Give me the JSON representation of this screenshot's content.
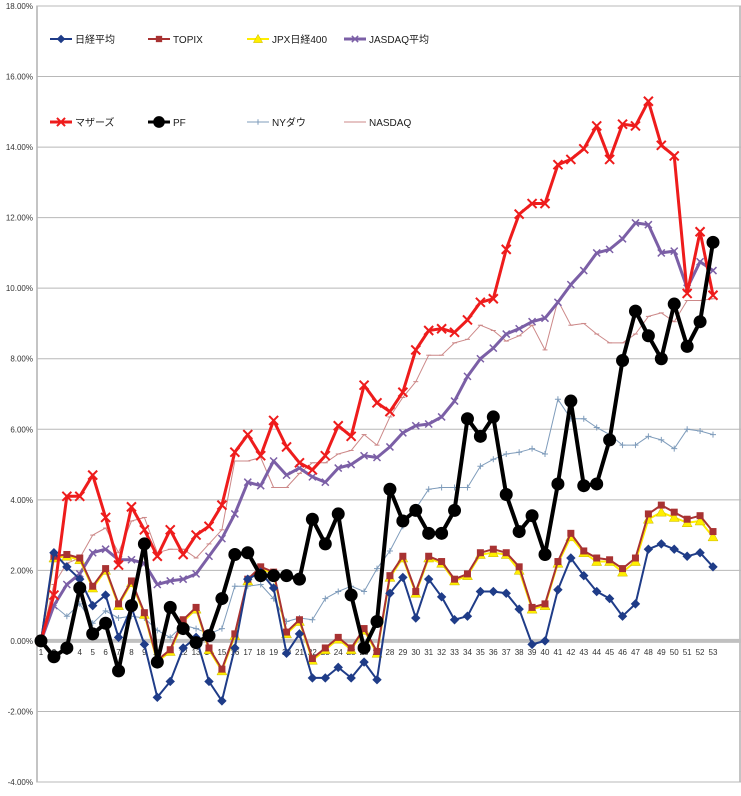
{
  "chart_data": {
    "type": "line",
    "title": "",
    "xlabel": "",
    "ylabel": "",
    "ylim": [
      -4.0,
      18.0
    ],
    "yticks": [
      "-4.00%",
      "-2.00%",
      "0.00%",
      "2.00%",
      "4.00%",
      "6.00%",
      "8.00%",
      "10.00%",
      "12.00%",
      "14.00%",
      "16.00%",
      "18.00%"
    ],
    "x": [
      1,
      2,
      3,
      4,
      5,
      6,
      7,
      8,
      9,
      10,
      11,
      12,
      13,
      14,
      15,
      16,
      17,
      18,
      19,
      20,
      21,
      22,
      23,
      24,
      25,
      26,
      27,
      28,
      29,
      30,
      31,
      32,
      33,
      34,
      35,
      36,
      37,
      38,
      39,
      40,
      41,
      42,
      43,
      44,
      45,
      46,
      47,
      48,
      49,
      50,
      51,
      52,
      53
    ],
    "grid": true,
    "legend_position": "top-left",
    "series": [
      {
        "name": "日経平均",
        "color": "#1f3c88",
        "marker": "diamond",
        "width": 2,
        "values": [
          0,
          2.5,
          2.1,
          1.75,
          1.0,
          1.3,
          0.1,
          0.95,
          -0.1,
          -1.6,
          -1.15,
          -0.2,
          0.1,
          -1.15,
          -1.7,
          -0.2,
          1.75,
          1.95,
          1.5,
          -0.35,
          0.2,
          -1.05,
          -1.05,
          -0.75,
          -1.05,
          -0.6,
          -1.1,
          1.35,
          1.8,
          0.65,
          1.75,
          1.25,
          0.6,
          0.7,
          1.4,
          1.4,
          1.35,
          0.9,
          -0.1,
          0,
          1.45,
          2.35,
          1.85,
          1.4,
          1.2,
          0.7,
          1.05,
          2.6,
          2.75,
          2.6,
          2.4,
          2.5,
          2.1
        ]
      },
      {
        "name": "TOPIX",
        "color": "#a83232",
        "marker": "square",
        "width": 2,
        "values": [
          0,
          2.4,
          2.45,
          2.35,
          1.55,
          2.05,
          1.05,
          1.7,
          0.8,
          -0.55,
          -0.25,
          0.6,
          0.95,
          -0.2,
          -0.8,
          0.2,
          1.75,
          2.1,
          1.95,
          0.25,
          0.6,
          -0.5,
          -0.2,
          0.1,
          -0.2,
          0.35,
          -0.3,
          1.85,
          2.4,
          1.4,
          2.4,
          2.25,
          1.75,
          1.9,
          2.5,
          2.6,
          2.5,
          2.1,
          0.95,
          1.05,
          2.25,
          3.05,
          2.55,
          2.35,
          2.3,
          2.05,
          2.35,
          3.6,
          3.85,
          3.65,
          3.45,
          3.55,
          3.1
        ]
      },
      {
        "name": "JPX日経400",
        "color": "#ffee00",
        "marker": "triangle",
        "width": 2,
        "values": [
          0,
          2.35,
          2.4,
          2.3,
          1.5,
          2.0,
          1.0,
          1.65,
          0.75,
          -0.6,
          -0.3,
          0.55,
          0.9,
          -0.25,
          -0.85,
          0.15,
          1.7,
          2.05,
          1.9,
          0.2,
          0.55,
          -0.55,
          -0.25,
          0.05,
          -0.25,
          0.3,
          -0.35,
          1.8,
          2.35,
          1.35,
          2.35,
          2.2,
          1.7,
          1.85,
          2.45,
          2.5,
          2.45,
          2.0,
          0.9,
          1.0,
          2.2,
          2.95,
          2.5,
          2.25,
          2.25,
          1.95,
          2.25,
          3.45,
          3.65,
          3.5,
          3.35,
          3.4,
          2.95
        ]
      },
      {
        "name": "JASDAQ平均",
        "color": "#7b5fa6",
        "marker": "cross",
        "width": 3,
        "values": [
          0,
          1.0,
          1.6,
          1.9,
          2.5,
          2.6,
          2.3,
          2.3,
          2.2,
          1.6,
          1.7,
          1.75,
          1.9,
          2.4,
          2.9,
          3.6,
          4.5,
          4.4,
          5.1,
          4.7,
          4.9,
          4.65,
          4.5,
          4.9,
          5.0,
          5.25,
          5.2,
          5.5,
          5.9,
          6.1,
          6.15,
          6.35,
          6.8,
          7.5,
          8.0,
          8.3,
          8.7,
          8.85,
          9.05,
          9.15,
          9.6,
          10.1,
          10.5,
          11.0,
          11.1,
          11.4,
          11.85,
          11.8,
          11.0,
          11.05,
          10.0,
          10.75,
          10.5
        ]
      },
      {
        "name": "マザーズ",
        "color": "#ee1c1c",
        "marker": "x",
        "width": 3,
        "values": [
          0,
          1.3,
          4.1,
          4.1,
          4.7,
          3.5,
          2.15,
          3.8,
          3.15,
          2.4,
          3.15,
          2.45,
          3.0,
          3.25,
          3.85,
          5.35,
          5.85,
          5.25,
          6.25,
          5.5,
          5.05,
          4.85,
          5.25,
          6.1,
          5.8,
          7.25,
          6.75,
          6.5,
          7.05,
          8.25,
          8.8,
          8.85,
          8.75,
          9.1,
          9.6,
          9.7,
          11.1,
          12.1,
          12.4,
          12.4,
          13.5,
          13.65,
          13.95,
          14.6,
          13.65,
          14.65,
          14.6,
          15.3,
          14.05,
          13.75,
          9.85,
          11.6,
          9.8
        ]
      },
      {
        "name": "PF",
        "color": "#000000",
        "marker": "circle",
        "width": 4,
        "values": [
          0,
          -0.45,
          -0.2,
          1.5,
          0.2,
          0.5,
          -0.85,
          1.0,
          2.75,
          -0.6,
          0.95,
          0.35,
          -0.05,
          0.15,
          1.2,
          2.45,
          2.5,
          1.85,
          1.85,
          1.85,
          1.75,
          3.45,
          2.75,
          3.6,
          1.3,
          -0.2,
          0.55,
          4.3,
          3.4,
          3.7,
          3.05,
          3.05,
          3.7,
          6.3,
          5.8,
          6.35,
          4.15,
          3.1,
          3.55,
          2.45,
          4.45,
          6.8,
          4.4,
          4.45,
          5.7,
          7.95,
          9.35,
          8.65,
          8.0,
          9.55,
          8.35,
          9.05,
          11.3
        ]
      },
      {
        "name": "NYダウ",
        "color": "#7f9cbb",
        "marker": "plus",
        "width": 1,
        "values": [
          0,
          1.0,
          0.7,
          1.05,
          0.5,
          0.85,
          0.65,
          0.7,
          0.65,
          0.3,
          0.1,
          0.45,
          0.35,
          0.2,
          0.35,
          1.55,
          1.55,
          1.6,
          1.2,
          0.55,
          0.65,
          0.6,
          1.2,
          1.4,
          1.55,
          1.4,
          2.05,
          2.55,
          3.25,
          3.75,
          4.3,
          4.35,
          4.35,
          4.35,
          4.95,
          5.15,
          5.3,
          5.35,
          5.45,
          5.3,
          6.85,
          6.3,
          6.3,
          6.05,
          5.85,
          5.55,
          5.55,
          5.8,
          5.7,
          5.45,
          6.0,
          5.95,
          5.85
        ]
      },
      {
        "name": "NASDAQ",
        "color": "#cc8888",
        "marker": "dash",
        "width": 1,
        "values": [
          0,
          1.6,
          2.2,
          2.35,
          3.0,
          3.2,
          2.5,
          3.4,
          3.5,
          2.5,
          2.6,
          2.6,
          2.35,
          2.75,
          3.15,
          5.1,
          5.1,
          5.2,
          4.35,
          4.35,
          4.75,
          5.05,
          5.05,
          5.3,
          5.4,
          5.85,
          5.55,
          6.35,
          6.9,
          7.35,
          8.1,
          8.1,
          8.45,
          8.55,
          8.95,
          8.8,
          8.5,
          8.65,
          8.95,
          8.25,
          9.65,
          8.95,
          9.0,
          8.7,
          8.45,
          8.45,
          8.7,
          9.2,
          9.3,
          9.05,
          9.65,
          9.65,
          9.7
        ]
      }
    ]
  }
}
